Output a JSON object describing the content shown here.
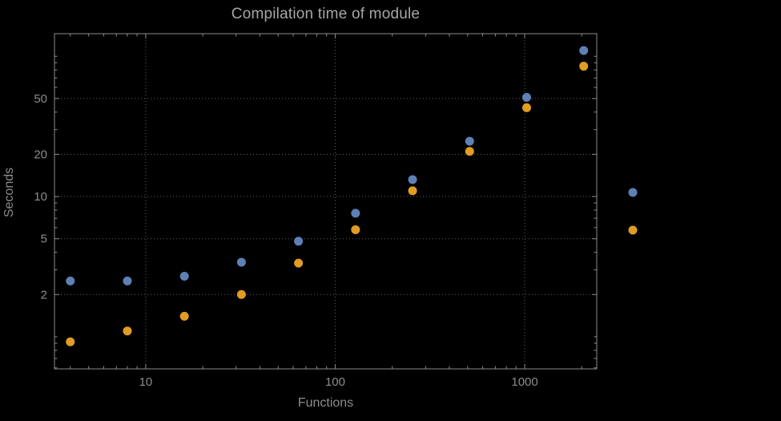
{
  "page": {
    "background": "#000000"
  },
  "chart_data": {
    "type": "scatter",
    "title": "Compilation time of module",
    "xlabel": "Functions",
    "ylabel": "Seconds",
    "x_scale": "log",
    "y_scale": "log",
    "xlim": [
      3.3,
      2400
    ],
    "ylim": [
      0.59,
      145
    ],
    "x_ticks": [
      10,
      100,
      1000
    ],
    "x_tick_labels": [
      "10",
      "100",
      "1000"
    ],
    "y_ticks": [
      2,
      5,
      10,
      20,
      50
    ],
    "y_tick_labels": [
      "2",
      "5",
      "10",
      "20",
      "50"
    ],
    "grid": {
      "style": "dotted",
      "color": "#616161"
    },
    "frame_color": "#8c8c8c",
    "title_color": "#a6a6a6",
    "label_color": "#8c8c8c",
    "legend": {
      "position": "right-outside",
      "labels_visible": false
    },
    "x": [
      4,
      8,
      16,
      32,
      64,
      128,
      256,
      512,
      1024,
      2048
    ],
    "series": [
      {
        "name": "series-1",
        "color": "#5e81b5",
        "values": [
          2.5,
          2.5,
          2.7,
          3.4,
          4.8,
          7.6,
          13.2,
          24.8,
          51,
          110
        ]
      },
      {
        "name": "series-2",
        "color": "#e19c24",
        "values": [
          0.92,
          1.1,
          1.4,
          2.0,
          3.35,
          5.8,
          11,
          21,
          43,
          85
        ]
      }
    ]
  }
}
